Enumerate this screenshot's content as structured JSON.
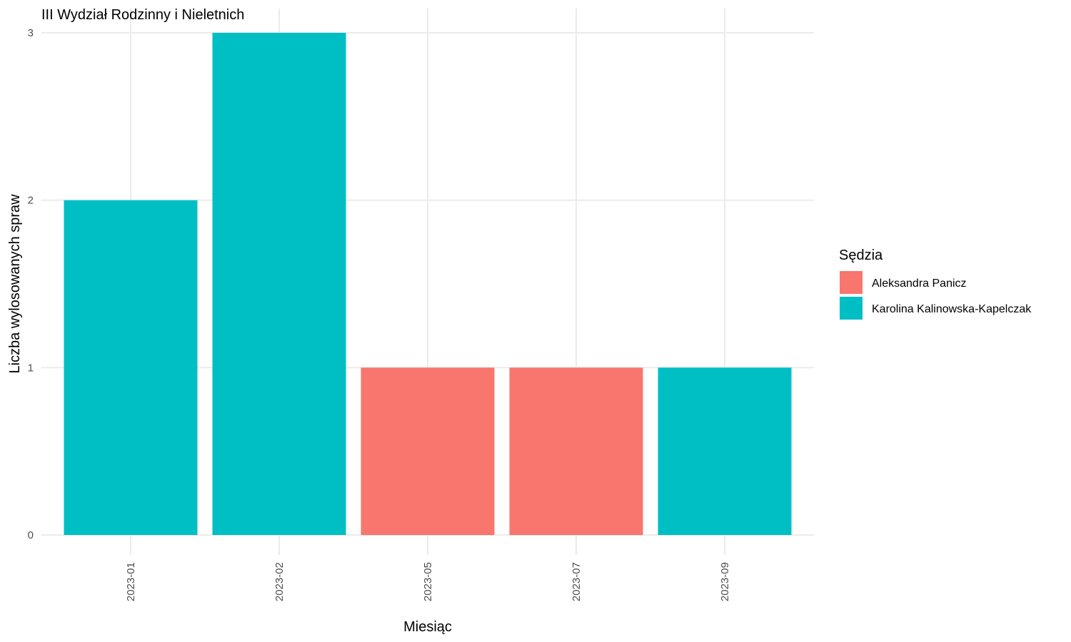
{
  "chart_data": {
    "type": "bar",
    "title": "III Wydział Rodzinny i Nieletnich",
    "xlabel": "Miesiąc",
    "ylabel": "Liczba wylosowanych spraw",
    "categories": [
      "2023-01",
      "2023-02",
      "2023-05",
      "2023-07",
      "2023-09"
    ],
    "values": [
      2,
      3,
      1,
      1,
      1
    ],
    "bar_judge": [
      "Karolina Kalinowska-Kapelczak",
      "Karolina Kalinowska-Kapelczak",
      "Aleksandra Panicz",
      "Aleksandra Panicz",
      "Karolina Kalinowska-Kapelczak"
    ],
    "ylim": [
      0,
      3
    ],
    "yticks": [
      "0",
      "1",
      "2",
      "3"
    ],
    "grid": true,
    "legend": {
      "title": "Sędzia",
      "placement": "right",
      "entries": [
        {
          "name": "Aleksandra Panicz",
          "color": "#f8766d"
        },
        {
          "name": "Karolina Kalinowska-Kapelczak",
          "color": "#00bfc4"
        }
      ]
    }
  }
}
